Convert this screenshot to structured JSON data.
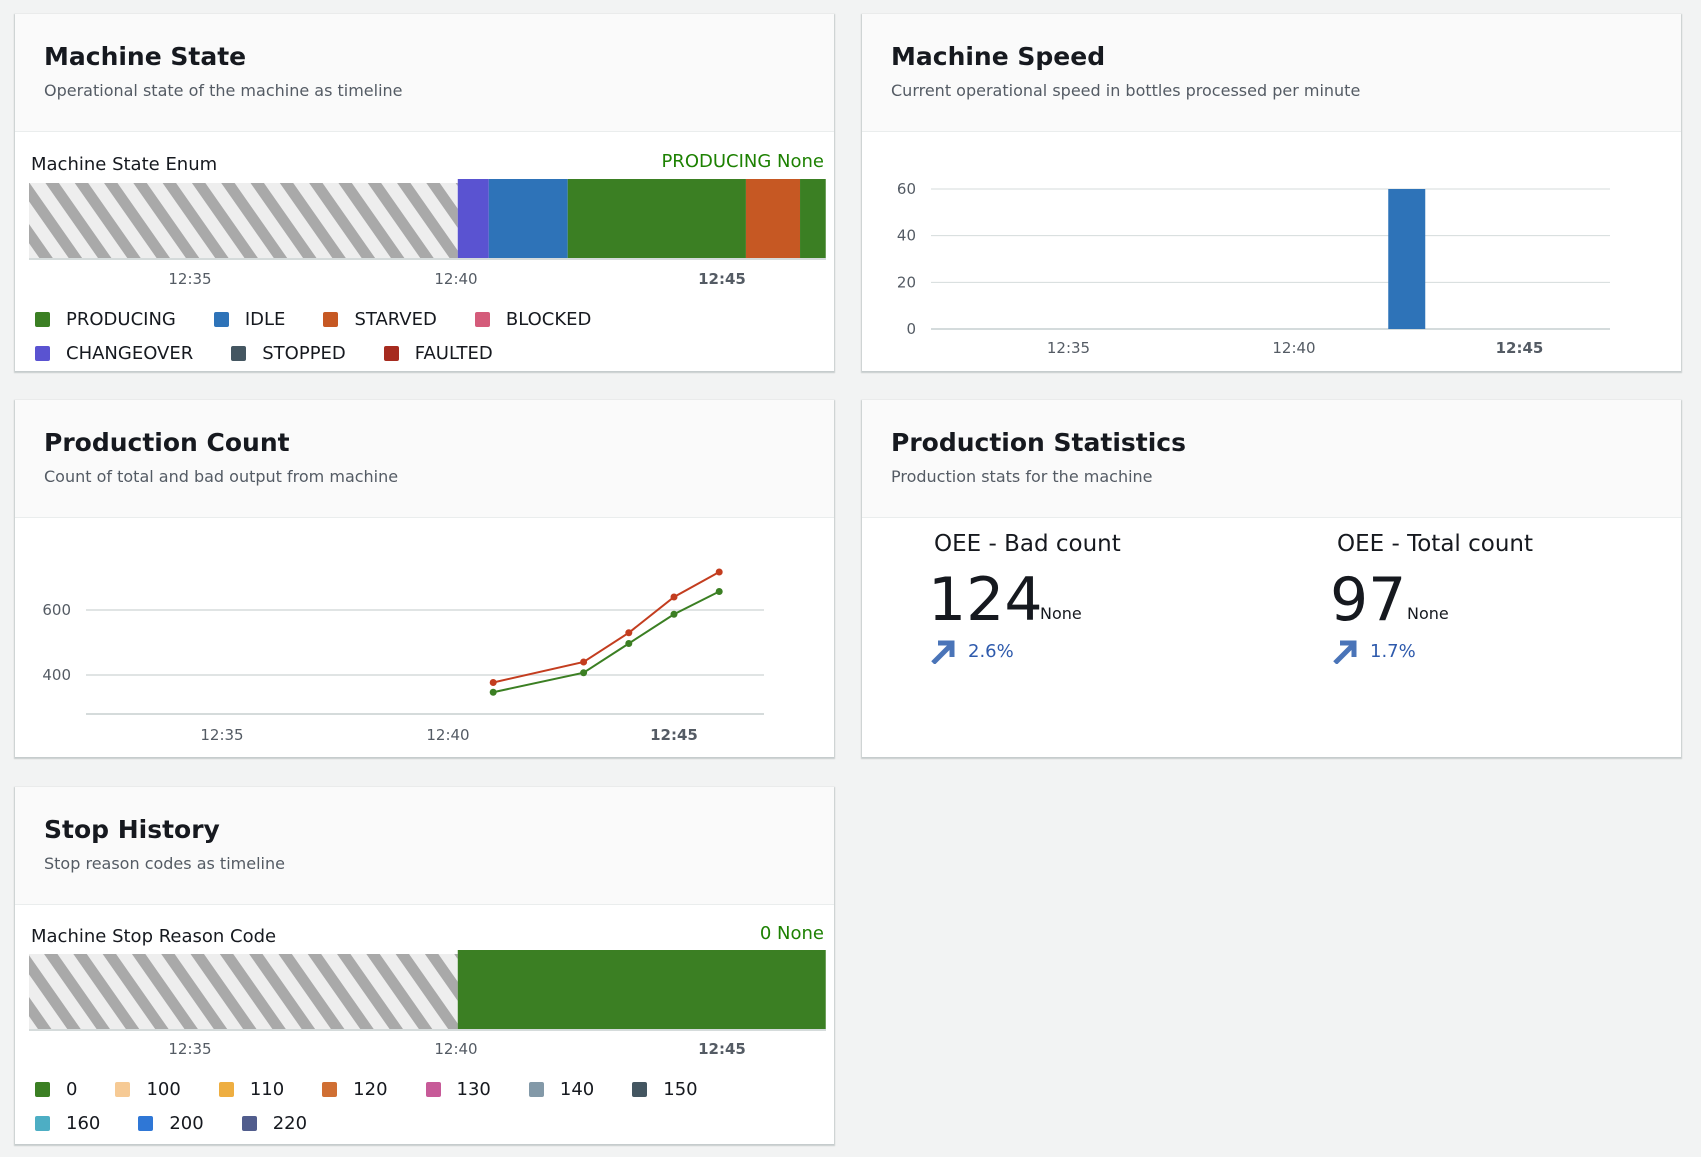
{
  "machine_state": {
    "title": "Machine State",
    "subtitle": "Operational state of the machine as timeline",
    "property": "Machine State Enum",
    "current": "PRODUCING None",
    "x_ticks": [
      "12:35",
      "12:40",
      "12:45"
    ],
    "x_range": [
      "12:31:58",
      "12:46:57"
    ],
    "no_data_until": "12:40:02",
    "segments": [
      {
        "state": "CHANGEOVER",
        "start": "12:40:02",
        "end": "12:40:37"
      },
      {
        "state": "IDLE",
        "start": "12:40:37",
        "end": "12:42:06"
      },
      {
        "state": "PRODUCING",
        "start": "12:42:06",
        "end": "12:45:27"
      },
      {
        "state": "STARVED",
        "start": "12:45:27",
        "end": "12:46:28"
      },
      {
        "state": "PRODUCING",
        "start": "12:46:28",
        "end": "12:46:57"
      }
    ],
    "legend": [
      {
        "label": "PRODUCING",
        "color": "#3b7f23"
      },
      {
        "label": "IDLE",
        "color": "#2e73b8"
      },
      {
        "label": "STARVED",
        "color": "#c65823"
      },
      {
        "label": "BLOCKED",
        "color": "#d45b7a"
      },
      {
        "label": "CHANGEOVER",
        "color": "#5a53d1"
      },
      {
        "label": "STOPPED",
        "color": "#445661"
      },
      {
        "label": "FAULTED",
        "color": "#a62b1f"
      }
    ]
  },
  "machine_speed": {
    "title": "Machine Speed",
    "subtitle": "Current operational speed in bottles processed per minute",
    "chart_data": {
      "type": "bar",
      "x": [
        "12:42:30"
      ],
      "values": [
        60
      ],
      "ylim": [
        0,
        60
      ],
      "y_ticks": [
        "0",
        "20",
        "40",
        "60"
      ],
      "x_ticks": [
        "12:35",
        "12:40",
        "12:45"
      ],
      "grid": true,
      "color": "#2e73b8"
    }
  },
  "production_count": {
    "title": "Production Count",
    "subtitle": "Count of total and bad output from machine",
    "chart_data": {
      "type": "line",
      "x": [
        "12:41",
        "12:43",
        "12:44",
        "12:45",
        "12:46"
      ],
      "series": [
        {
          "values": [
            377,
            440,
            530,
            640,
            717
          ],
          "color": "#c33d1f"
        },
        {
          "values": [
            347,
            407,
            497,
            587,
            657
          ],
          "color": "#3b7f23"
        }
      ],
      "ylim": [
        280,
        800
      ],
      "y_ticks": [
        "400",
        "600"
      ],
      "x_ticks": [
        "12:35",
        "12:40",
        "12:45"
      ],
      "grid": true
    }
  },
  "production_statistics": {
    "title": "Production Statistics",
    "subtitle": "Production stats for the machine",
    "stats": [
      {
        "label": "OEE - Bad count",
        "value": "124",
        "unit": "None",
        "trend": "2.6%",
        "trend_icon": "arrow-up-right-icon"
      },
      {
        "label": "OEE - Total count",
        "value": "97",
        "unit": "None",
        "trend": "1.7%",
        "trend_icon": "arrow-up-right-icon"
      }
    ]
  },
  "stop_history": {
    "title": "Stop History",
    "subtitle": "Stop reason codes as timeline",
    "property": "Machine Stop Reason Code",
    "current": "0 None",
    "x_ticks": [
      "12:35",
      "12:40",
      "12:45"
    ],
    "no_data_until": "12:40:02",
    "segments": [
      {
        "state": "0",
        "start": "12:40:02",
        "end": "12:46:57"
      }
    ],
    "legend": [
      {
        "label": "0",
        "color": "#3b7f23"
      },
      {
        "label": "100",
        "color": "#f6ca95"
      },
      {
        "label": "110",
        "color": "#eeae41"
      },
      {
        "label": "120",
        "color": "#d06f33"
      },
      {
        "label": "130",
        "color": "#c75a98"
      },
      {
        "label": "140",
        "color": "#8399a8"
      },
      {
        "label": "150",
        "color": "#445661"
      },
      {
        "label": "160",
        "color": "#4daec4"
      },
      {
        "label": "200",
        "color": "#2f77d6"
      },
      {
        "label": "220",
        "color": "#515d8d"
      }
    ]
  }
}
